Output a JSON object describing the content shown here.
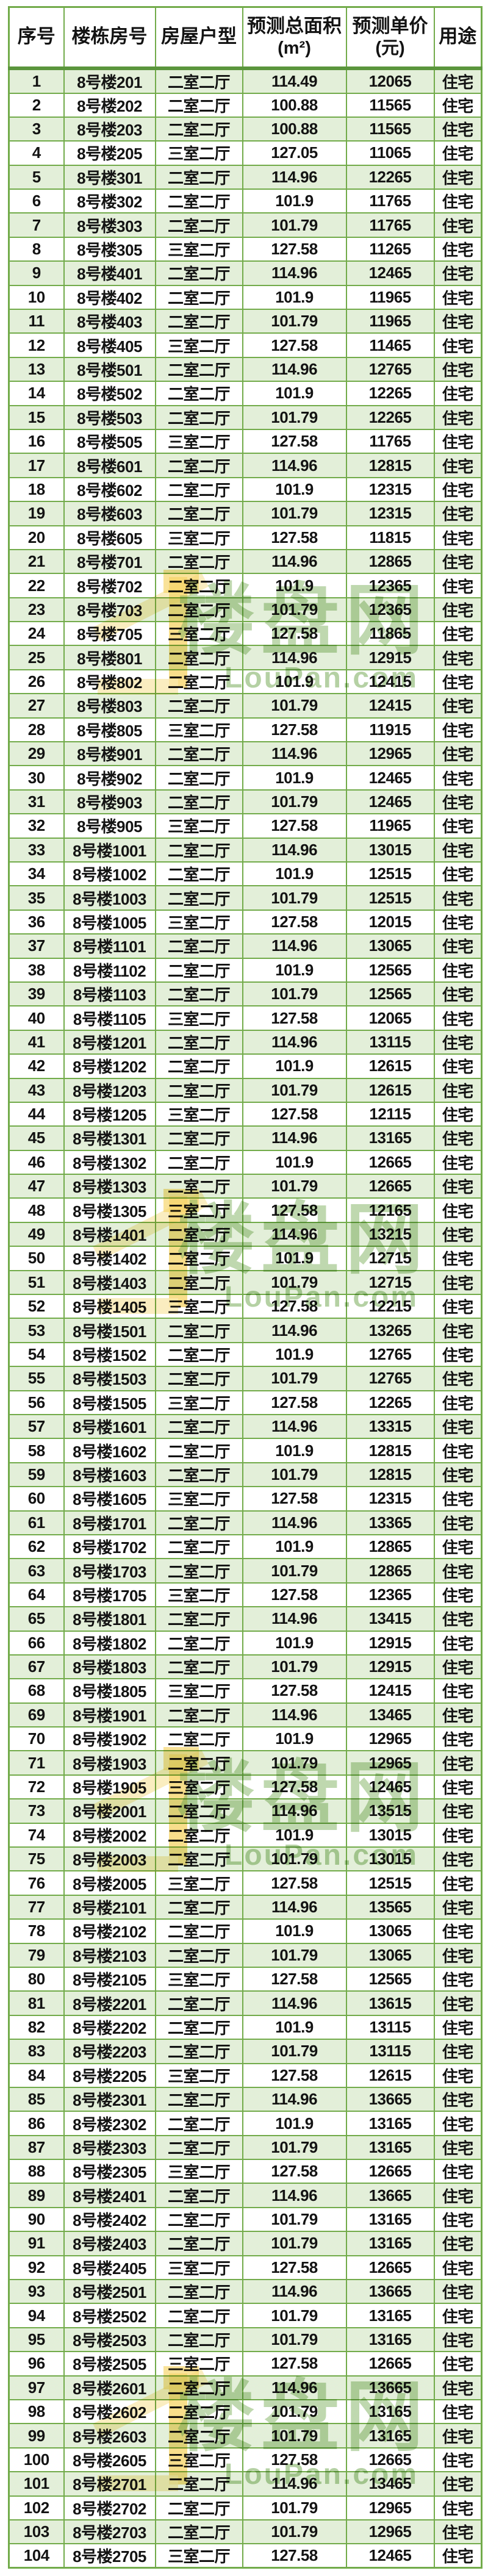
{
  "colors": {
    "table_border_green": "#72ab4a",
    "header_divider_green": "#5a953c",
    "row_fill_green": "#e3efd9",
    "row_fill_white": "#ffffff",
    "text_color": "#131313",
    "watermark_green": "#86b764",
    "watermark_yellow": "#f6d66e"
  },
  "watermark": {
    "brand_cn": "楼盘网",
    "brand_en": "LouPan.com",
    "icon": "house-flag-icon"
  },
  "table": {
    "columns": [
      {
        "key": "seq",
        "label": "序号",
        "sub": ""
      },
      {
        "key": "room",
        "label": "楼栋房号",
        "sub": ""
      },
      {
        "key": "type",
        "label": "房屋户型",
        "sub": ""
      },
      {
        "key": "area",
        "label": "预测总面积",
        "sub": "(m²)"
      },
      {
        "key": "price",
        "label": "预测单价",
        "sub": "(元)"
      },
      {
        "key": "use",
        "label": "用途",
        "sub": ""
      }
    ],
    "rows": [
      [
        "1",
        "8号楼201",
        "二室二厅",
        "114.49",
        "12065",
        "住宅"
      ],
      [
        "2",
        "8号楼202",
        "二室二厅",
        "100.88",
        "11565",
        "住宅"
      ],
      [
        "3",
        "8号楼203",
        "二室二厅",
        "100.88",
        "11565",
        "住宅"
      ],
      [
        "4",
        "8号楼205",
        "三室二厅",
        "127.05",
        "11065",
        "住宅"
      ],
      [
        "5",
        "8号楼301",
        "二室二厅",
        "114.96",
        "12265",
        "住宅"
      ],
      [
        "6",
        "8号楼302",
        "二室二厅",
        "101.9",
        "11765",
        "住宅"
      ],
      [
        "7",
        "8号楼303",
        "二室二厅",
        "101.79",
        "11765",
        "住宅"
      ],
      [
        "8",
        "8号楼305",
        "三室二厅",
        "127.58",
        "11265",
        "住宅"
      ],
      [
        "9",
        "8号楼401",
        "二室二厅",
        "114.96",
        "12465",
        "住宅"
      ],
      [
        "10",
        "8号楼402",
        "二室二厅",
        "101.9",
        "11965",
        "住宅"
      ],
      [
        "11",
        "8号楼403",
        "二室二厅",
        "101.79",
        "11965",
        "住宅"
      ],
      [
        "12",
        "8号楼405",
        "三室二厅",
        "127.58",
        "11465",
        "住宅"
      ],
      [
        "13",
        "8号楼501",
        "二室二厅",
        "114.96",
        "12765",
        "住宅"
      ],
      [
        "14",
        "8号楼502",
        "二室二厅",
        "101.9",
        "12265",
        "住宅"
      ],
      [
        "15",
        "8号楼503",
        "二室二厅",
        "101.79",
        "12265",
        "住宅"
      ],
      [
        "16",
        "8号楼505",
        "三室二厅",
        "127.58",
        "11765",
        "住宅"
      ],
      [
        "17",
        "8号楼601",
        "二室二厅",
        "114.96",
        "12815",
        "住宅"
      ],
      [
        "18",
        "8号楼602",
        "二室二厅",
        "101.9",
        "12315",
        "住宅"
      ],
      [
        "19",
        "8号楼603",
        "二室二厅",
        "101.79",
        "12315",
        "住宅"
      ],
      [
        "20",
        "8号楼605",
        "三室二厅",
        "127.58",
        "11815",
        "住宅"
      ],
      [
        "21",
        "8号楼701",
        "二室二厅",
        "114.96",
        "12865",
        "住宅"
      ],
      [
        "22",
        "8号楼702",
        "二室二厅",
        "101.9",
        "12365",
        "住宅"
      ],
      [
        "23",
        "8号楼703",
        "二室二厅",
        "101.79",
        "12365",
        "住宅"
      ],
      [
        "24",
        "8号楼705",
        "三室二厅",
        "127.58",
        "11865",
        "住宅"
      ],
      [
        "25",
        "8号楼801",
        "二室二厅",
        "114.96",
        "12915",
        "住宅"
      ],
      [
        "26",
        "8号楼802",
        "二室二厅",
        "101.9",
        "12415",
        "住宅"
      ],
      [
        "27",
        "8号楼803",
        "二室二厅",
        "101.79",
        "12415",
        "住宅"
      ],
      [
        "28",
        "8号楼805",
        "三室二厅",
        "127.58",
        "11915",
        "住宅"
      ],
      [
        "29",
        "8号楼901",
        "二室二厅",
        "114.96",
        "12965",
        "住宅"
      ],
      [
        "30",
        "8号楼902",
        "二室二厅",
        "101.9",
        "12465",
        "住宅"
      ],
      [
        "31",
        "8号楼903",
        "二室二厅",
        "101.79",
        "12465",
        "住宅"
      ],
      [
        "32",
        "8号楼905",
        "三室二厅",
        "127.58",
        "11965",
        "住宅"
      ],
      [
        "33",
        "8号楼1001",
        "二室二厅",
        "114.96",
        "13015",
        "住宅"
      ],
      [
        "34",
        "8号楼1002",
        "二室二厅",
        "101.9",
        "12515",
        "住宅"
      ],
      [
        "35",
        "8号楼1003",
        "二室二厅",
        "101.79",
        "12515",
        "住宅"
      ],
      [
        "36",
        "8号楼1005",
        "三室二厅",
        "127.58",
        "12015",
        "住宅"
      ],
      [
        "37",
        "8号楼1101",
        "二室二厅",
        "114.96",
        "13065",
        "住宅"
      ],
      [
        "38",
        "8号楼1102",
        "二室二厅",
        "101.9",
        "12565",
        "住宅"
      ],
      [
        "39",
        "8号楼1103",
        "二室二厅",
        "101.79",
        "12565",
        "住宅"
      ],
      [
        "40",
        "8号楼1105",
        "三室二厅",
        "127.58",
        "12065",
        "住宅"
      ],
      [
        "41",
        "8号楼1201",
        "二室二厅",
        "114.96",
        "13115",
        "住宅"
      ],
      [
        "42",
        "8号楼1202",
        "二室二厅",
        "101.9",
        "12615",
        "住宅"
      ],
      [
        "43",
        "8号楼1203",
        "二室二厅",
        "101.79",
        "12615",
        "住宅"
      ],
      [
        "44",
        "8号楼1205",
        "三室二厅",
        "127.58",
        "12115",
        "住宅"
      ],
      [
        "45",
        "8号楼1301",
        "二室二厅",
        "114.96",
        "13165",
        "住宅"
      ],
      [
        "46",
        "8号楼1302",
        "二室二厅",
        "101.9",
        "12665",
        "住宅"
      ],
      [
        "47",
        "8号楼1303",
        "二室二厅",
        "101.79",
        "12665",
        "住宅"
      ],
      [
        "48",
        "8号楼1305",
        "三室二厅",
        "127.58",
        "12165",
        "住宅"
      ],
      [
        "49",
        "8号楼1401",
        "二室二厅",
        "114.96",
        "13215",
        "住宅"
      ],
      [
        "50",
        "8号楼1402",
        "二室二厅",
        "101.9",
        "12715",
        "住宅"
      ],
      [
        "51",
        "8号楼1403",
        "二室二厅",
        "101.79",
        "12715",
        "住宅"
      ],
      [
        "52",
        "8号楼1405",
        "三室二厅",
        "127.58",
        "12215",
        "住宅"
      ],
      [
        "53",
        "8号楼1501",
        "二室二厅",
        "114.96",
        "13265",
        "住宅"
      ],
      [
        "54",
        "8号楼1502",
        "二室二厅",
        "101.9",
        "12765",
        "住宅"
      ],
      [
        "55",
        "8号楼1503",
        "二室二厅",
        "101.79",
        "12765",
        "住宅"
      ],
      [
        "56",
        "8号楼1505",
        "三室二厅",
        "127.58",
        "12265",
        "住宅"
      ],
      [
        "57",
        "8号楼1601",
        "二室二厅",
        "114.96",
        "13315",
        "住宅"
      ],
      [
        "58",
        "8号楼1602",
        "二室二厅",
        "101.9",
        "12815",
        "住宅"
      ],
      [
        "59",
        "8号楼1603",
        "二室二厅",
        "101.79",
        "12815",
        "住宅"
      ],
      [
        "60",
        "8号楼1605",
        "三室二厅",
        "127.58",
        "12315",
        "住宅"
      ],
      [
        "61",
        "8号楼1701",
        "二室二厅",
        "114.96",
        "13365",
        "住宅"
      ],
      [
        "62",
        "8号楼1702",
        "二室二厅",
        "101.9",
        "12865",
        "住宅"
      ],
      [
        "63",
        "8号楼1703",
        "二室二厅",
        "101.79",
        "12865",
        "住宅"
      ],
      [
        "64",
        "8号楼1705",
        "三室二厅",
        "127.58",
        "12365",
        "住宅"
      ],
      [
        "65",
        "8号楼1801",
        "二室二厅",
        "114.96",
        "13415",
        "住宅"
      ],
      [
        "66",
        "8号楼1802",
        "二室二厅",
        "101.9",
        "12915",
        "住宅"
      ],
      [
        "67",
        "8号楼1803",
        "二室二厅",
        "101.79",
        "12915",
        "住宅"
      ],
      [
        "68",
        "8号楼1805",
        "三室二厅",
        "127.58",
        "12415",
        "住宅"
      ],
      [
        "69",
        "8号楼1901",
        "二室二厅",
        "114.96",
        "13465",
        "住宅"
      ],
      [
        "70",
        "8号楼1902",
        "二室二厅",
        "101.9",
        "12965",
        "住宅"
      ],
      [
        "71",
        "8号楼1903",
        "二室二厅",
        "101.79",
        "12965",
        "住宅"
      ],
      [
        "72",
        "8号楼1905",
        "三室二厅",
        "127.58",
        "12465",
        "住宅"
      ],
      [
        "73",
        "8号楼2001",
        "二室二厅",
        "114.96",
        "13515",
        "住宅"
      ],
      [
        "74",
        "8号楼2002",
        "二室二厅",
        "101.9",
        "13015",
        "住宅"
      ],
      [
        "75",
        "8号楼2003",
        "二室二厅",
        "101.79",
        "13015",
        "住宅"
      ],
      [
        "76",
        "8号楼2005",
        "三室二厅",
        "127.58",
        "12515",
        "住宅"
      ],
      [
        "77",
        "8号楼2101",
        "二室二厅",
        "114.96",
        "13565",
        "住宅"
      ],
      [
        "78",
        "8号楼2102",
        "二室二厅",
        "101.9",
        "13065",
        "住宅"
      ],
      [
        "79",
        "8号楼2103",
        "二室二厅",
        "101.79",
        "13065",
        "住宅"
      ],
      [
        "80",
        "8号楼2105",
        "三室二厅",
        "127.58",
        "12565",
        "住宅"
      ],
      [
        "81",
        "8号楼2201",
        "二室二厅",
        "114.96",
        "13615",
        "住宅"
      ],
      [
        "82",
        "8号楼2202",
        "二室二厅",
        "101.9",
        "13115",
        "住宅"
      ],
      [
        "83",
        "8号楼2203",
        "二室二厅",
        "101.79",
        "13115",
        "住宅"
      ],
      [
        "84",
        "8号楼2205",
        "三室二厅",
        "127.58",
        "12615",
        "住宅"
      ],
      [
        "85",
        "8号楼2301",
        "二室二厅",
        "114.96",
        "13665",
        "住宅"
      ],
      [
        "86",
        "8号楼2302",
        "二室二厅",
        "101.9",
        "13165",
        "住宅"
      ],
      [
        "87",
        "8号楼2303",
        "二室二厅",
        "101.79",
        "13165",
        "住宅"
      ],
      [
        "88",
        "8号楼2305",
        "三室二厅",
        "127.58",
        "12665",
        "住宅"
      ],
      [
        "89",
        "8号楼2401",
        "二室二厅",
        "114.96",
        "13665",
        "住宅"
      ],
      [
        "90",
        "8号楼2402",
        "二室二厅",
        "101.79",
        "13165",
        "住宅"
      ],
      [
        "91",
        "8号楼2403",
        "二室二厅",
        "101.79",
        "13165",
        "住宅"
      ],
      [
        "92",
        "8号楼2405",
        "三室二厅",
        "127.58",
        "12665",
        "住宅"
      ],
      [
        "93",
        "8号楼2501",
        "二室二厅",
        "114.96",
        "13665",
        "住宅"
      ],
      [
        "94",
        "8号楼2502",
        "二室二厅",
        "101.79",
        "13165",
        "住宅"
      ],
      [
        "95",
        "8号楼2503",
        "二室二厅",
        "101.79",
        "13165",
        "住宅"
      ],
      [
        "96",
        "8号楼2505",
        "三室二厅",
        "127.58",
        "12665",
        "住宅"
      ],
      [
        "97",
        "8号楼2601",
        "二室二厅",
        "114.96",
        "13665",
        "住宅"
      ],
      [
        "98",
        "8号楼2602",
        "二室二厅",
        "101.79",
        "13165",
        "住宅"
      ],
      [
        "99",
        "8号楼2603",
        "二室二厅",
        "101.79",
        "13165",
        "住宅"
      ],
      [
        "100",
        "8号楼2605",
        "三室二厅",
        "127.58",
        "12665",
        "住宅"
      ],
      [
        "101",
        "8号楼2701",
        "二室二厅",
        "114.96",
        "13465",
        "住宅"
      ],
      [
        "102",
        "8号楼2702",
        "二室二厅",
        "101.79",
        "12965",
        "住宅"
      ],
      [
        "103",
        "8号楼2703",
        "二室二厅",
        "101.79",
        "12965",
        "住宅"
      ],
      [
        "104",
        "8号楼2705",
        "三室二厅",
        "127.58",
        "12465",
        "住宅"
      ]
    ]
  }
}
